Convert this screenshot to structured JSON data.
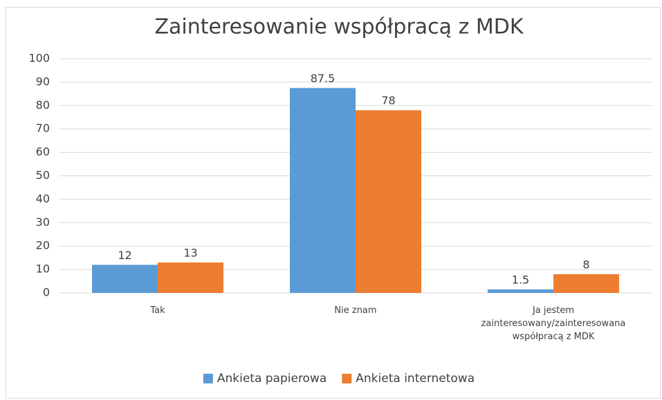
{
  "chart_data": {
    "type": "bar",
    "title": "Zainteresowanie współpracą z MDK",
    "categories": [
      "Tak",
      "Nie znam",
      "Ja jestem zainteresowany/zainteresowana współpracą z MDK"
    ],
    "series": [
      {
        "name": "Ankieta papierowa",
        "color": "#5b9bd5",
        "values": [
          12,
          87.5,
          1.5
        ]
      },
      {
        "name": "Ankieta internetowa",
        "color": "#ed7d31",
        "values": [
          13,
          78,
          8
        ]
      }
    ],
    "ylim": [
      0,
      100
    ],
    "yticks": [
      0,
      10,
      20,
      30,
      40,
      50,
      60,
      70,
      80,
      90,
      100
    ],
    "grid": true,
    "legend": "bottom"
  }
}
